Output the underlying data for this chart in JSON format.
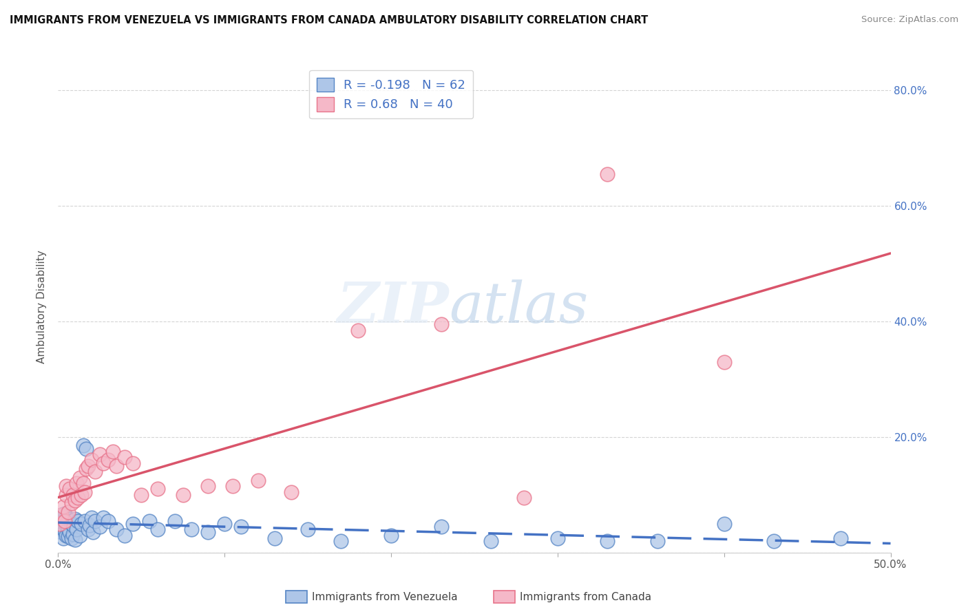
{
  "title": "IMMIGRANTS FROM VENEZUELA VS IMMIGRANTS FROM CANADA AMBULATORY DISABILITY CORRELATION CHART",
  "source": "Source: ZipAtlas.com",
  "ylabel": "Ambulatory Disability",
  "xlim": [
    0.0,
    0.5
  ],
  "ylim": [
    0.0,
    0.85
  ],
  "xticks": [
    0.0,
    0.1,
    0.2,
    0.3,
    0.4,
    0.5
  ],
  "yticks": [
    0.0,
    0.2,
    0.4,
    0.6,
    0.8
  ],
  "right_ytick_labels": [
    "",
    "20.0%",
    "40.0%",
    "60.0%",
    "80.0%"
  ],
  "xtick_labels": [
    "0.0%",
    "",
    "",
    "",
    "",
    "50.0%"
  ],
  "venezuela_R": -0.198,
  "venezuela_N": 62,
  "canada_R": 0.68,
  "canada_N": 40,
  "venezuela_color": "#aec6e8",
  "canada_color": "#f5b8c8",
  "venezuela_edge_color": "#5585c5",
  "canada_edge_color": "#e8738a",
  "venezuela_line_color": "#4472c4",
  "canada_line_color": "#d9546a",
  "background_color": "#ffffff",
  "grid_color": "#d0d0d0",
  "venezuela_x": [
    0.001,
    0.001,
    0.002,
    0.002,
    0.002,
    0.003,
    0.003,
    0.003,
    0.004,
    0.004,
    0.004,
    0.005,
    0.005,
    0.005,
    0.006,
    0.006,
    0.006,
    0.007,
    0.007,
    0.008,
    0.008,
    0.009,
    0.009,
    0.01,
    0.01,
    0.011,
    0.012,
    0.013,
    0.014,
    0.015,
    0.016,
    0.017,
    0.018,
    0.019,
    0.02,
    0.021,
    0.022,
    0.025,
    0.027,
    0.03,
    0.035,
    0.04,
    0.045,
    0.055,
    0.06,
    0.07,
    0.08,
    0.09,
    0.1,
    0.11,
    0.13,
    0.15,
    0.17,
    0.2,
    0.23,
    0.26,
    0.3,
    0.33,
    0.36,
    0.4,
    0.43,
    0.47
  ],
  "venezuela_y": [
    0.04,
    0.055,
    0.035,
    0.05,
    0.065,
    0.025,
    0.045,
    0.06,
    0.038,
    0.052,
    0.068,
    0.03,
    0.048,
    0.062,
    0.028,
    0.042,
    0.058,
    0.035,
    0.055,
    0.025,
    0.05,
    0.032,
    0.048,
    0.022,
    0.058,
    0.04,
    0.055,
    0.03,
    0.05,
    0.185,
    0.055,
    0.18,
    0.04,
    0.048,
    0.06,
    0.035,
    0.055,
    0.045,
    0.06,
    0.055,
    0.04,
    0.03,
    0.05,
    0.055,
    0.04,
    0.055,
    0.04,
    0.035,
    0.05,
    0.045,
    0.025,
    0.04,
    0.02,
    0.03,
    0.045,
    0.02,
    0.025,
    0.02,
    0.02,
    0.05,
    0.02,
    0.025
  ],
  "canada_x": [
    0.001,
    0.002,
    0.003,
    0.004,
    0.005,
    0.005,
    0.006,
    0.007,
    0.008,
    0.009,
    0.01,
    0.011,
    0.012,
    0.013,
    0.014,
    0.015,
    0.016,
    0.017,
    0.018,
    0.02,
    0.022,
    0.025,
    0.027,
    0.03,
    0.033,
    0.035,
    0.04,
    0.045,
    0.05,
    0.06,
    0.075,
    0.09,
    0.105,
    0.12,
    0.14,
    0.18,
    0.23,
    0.28,
    0.33,
    0.4
  ],
  "canada_y": [
    0.05,
    0.065,
    0.08,
    0.055,
    0.1,
    0.115,
    0.07,
    0.11,
    0.085,
    0.1,
    0.09,
    0.12,
    0.095,
    0.13,
    0.1,
    0.12,
    0.105,
    0.145,
    0.15,
    0.16,
    0.14,
    0.17,
    0.155,
    0.16,
    0.175,
    0.15,
    0.165,
    0.155,
    0.1,
    0.11,
    0.1,
    0.115,
    0.115,
    0.125,
    0.105,
    0.385,
    0.395,
    0.095,
    0.655,
    0.33
  ]
}
